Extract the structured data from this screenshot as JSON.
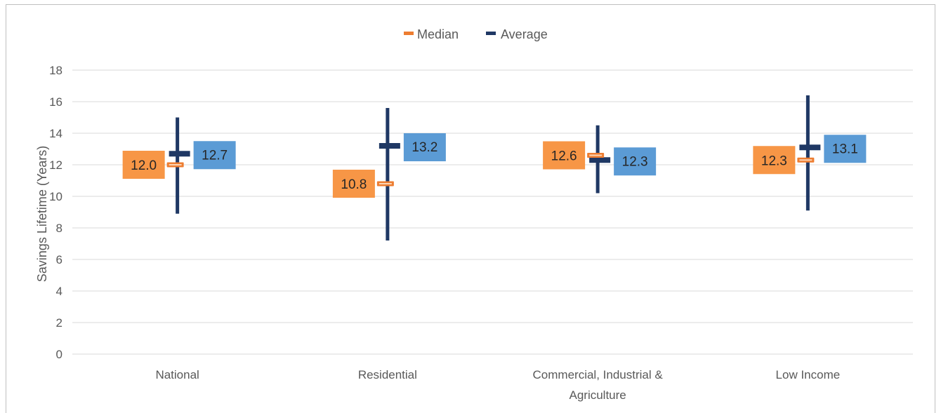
{
  "chart_data": {
    "type": "scatter",
    "title": "",
    "ylabel": "Savings Lifetime (Years)",
    "xlabel": "",
    "ylim": [
      0,
      18
    ],
    "yticks": [
      0,
      2,
      4,
      6,
      8,
      10,
      12,
      14,
      16,
      18
    ],
    "grid": true,
    "legend_position": "top",
    "categories": [
      {
        "lines": [
          "National"
        ]
      },
      {
        "lines": [
          "Residential"
        ]
      },
      {
        "lines": [
          "Commercial, Industrial &",
          "Agriculture"
        ]
      },
      {
        "lines": [
          "Low Income"
        ]
      }
    ],
    "range": {
      "low": [
        8.9,
        7.2,
        10.2,
        9.1
      ],
      "high": [
        15.0,
        15.6,
        14.5,
        16.4
      ]
    },
    "series": [
      {
        "name": "Median",
        "values": [
          12.0,
          10.8,
          12.6,
          12.3
        ],
        "labels": [
          "12.0",
          "10.8",
          "12.6",
          "12.3"
        ],
        "color": "#ED7D31",
        "label_bg": "#F79646"
      },
      {
        "name": "Average",
        "values": [
          12.7,
          13.2,
          12.3,
          13.1
        ],
        "labels": [
          "12.7",
          "13.2",
          "12.3",
          "13.1"
        ],
        "color": "#1F3864",
        "label_bg": "#5B9BD5"
      }
    ],
    "colors": {
      "range_line": "#1F3864",
      "grid": "#d9d9d9",
      "text": "#595959"
    }
  }
}
